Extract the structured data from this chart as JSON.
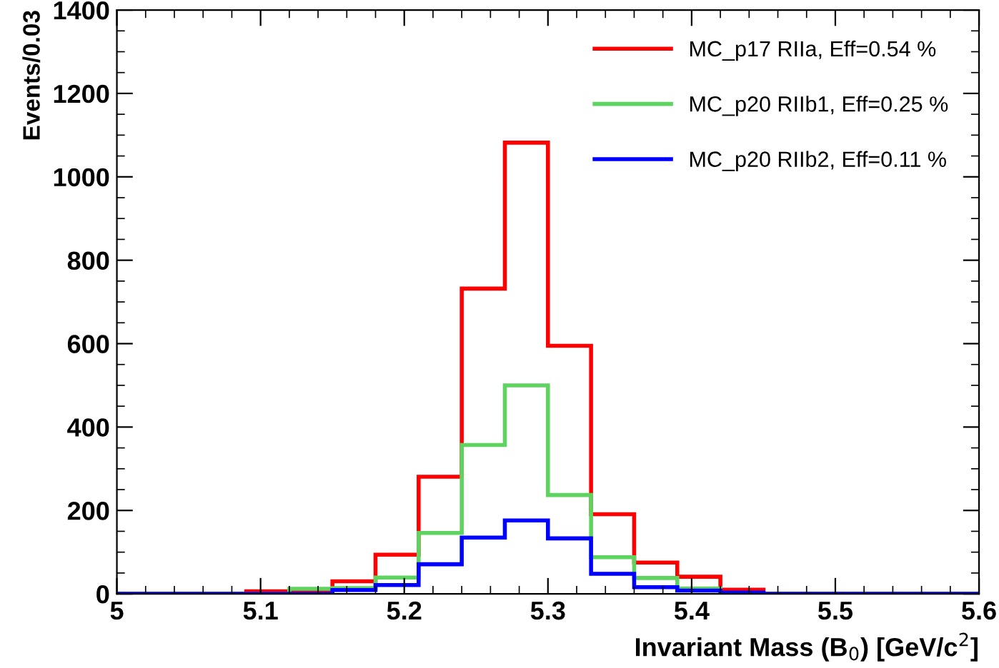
{
  "chart_data": {
    "type": "histogram",
    "xlabel": "Invariant Mass (B$_{0}$) [GeV/c$^{2}$]",
    "ylabel": "Events/0.03",
    "bins": [
      5.0,
      5.03,
      5.06,
      5.09,
      5.12,
      5.15,
      5.18,
      5.21,
      5.24,
      5.27,
      5.3,
      5.33,
      5.36,
      5.39,
      5.42,
      5.45,
      5.48,
      5.51,
      5.54,
      5.57,
      5.6
    ],
    "series": [
      {
        "name": "MC_p17 RIIa, Eff=0.54 %",
        "color": "#ff0000",
        "values": [
          0,
          0,
          0,
          6,
          5,
          30,
          94,
          281,
          732,
          1082,
          595,
          191,
          75,
          41,
          10,
          0,
          0,
          0,
          0,
          0
        ]
      },
      {
        "name": "MC_p20 RIIb1, Eff=0.25 %",
        "color": "#5fd35f",
        "values": [
          0,
          0,
          0,
          0,
          12,
          14,
          39,
          146,
          357,
          500,
          237,
          88,
          38,
          13,
          2,
          0,
          0,
          0,
          0,
          0
        ]
      },
      {
        "name": "MC_p20 RIIb2, Eff=0.11 %",
        "color": "#0000ff",
        "values": [
          0,
          0,
          0,
          0,
          0,
          9,
          21,
          71,
          135,
          176,
          133,
          48,
          16,
          8,
          3,
          0,
          0,
          0,
          0,
          0
        ]
      }
    ],
    "xlim": [
      5.0,
      5.6
    ],
    "xticks": [
      5,
      5.1,
      5.2,
      5.3,
      5.4,
      5.5,
      5.6
    ],
    "ylim": [
      0,
      1400
    ],
    "yticks": [
      0,
      200,
      400,
      600,
      800,
      1000,
      1200,
      1400
    ],
    "grid": false,
    "legend": "top right"
  }
}
